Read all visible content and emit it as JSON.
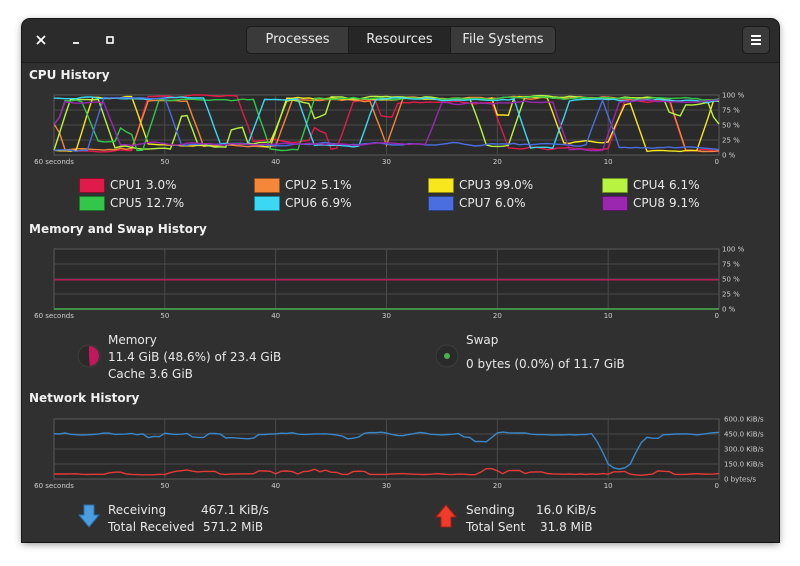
{
  "window": {
    "controls": {
      "close": "×",
      "minimize": "–",
      "maximize": "□"
    },
    "tabs": [
      {
        "label": "Processes",
        "active": false
      },
      {
        "label": "Resources",
        "active": true
      },
      {
        "label": "File Systems",
        "active": false
      }
    ]
  },
  "cpu": {
    "title": "CPU History",
    "y_ticks": [
      "100 %",
      "75 %",
      "50 %",
      "25 %",
      "0 %"
    ],
    "x_ticks": [
      "60 seconds",
      "50",
      "40",
      "30",
      "20",
      "10",
      "0"
    ],
    "cores": [
      {
        "label": "CPU1",
        "value": "3.0%",
        "color": "#e01b4b"
      },
      {
        "label": "CPU2",
        "value": "5.1%",
        "color": "#f5873a"
      },
      {
        "label": "CPU3",
        "value": "99.0%",
        "color": "#f8e71c"
      },
      {
        "label": "CPU4",
        "value": "6.1%",
        "color": "#b8f342"
      },
      {
        "label": "CPU5",
        "value": "12.7%",
        "color": "#33c749"
      },
      {
        "label": "CPU6",
        "value": "6.9%",
        "color": "#3cd7f5"
      },
      {
        "label": "CPU7",
        "value": "6.0%",
        "color": "#4a6edf"
      },
      {
        "label": "CPU8",
        "value": "9.1%",
        "color": "#9b27b0"
      }
    ]
  },
  "memory": {
    "title": "Memory and Swap History",
    "y_ticks": [
      "100 %",
      "75 %",
      "50 %",
      "25 %",
      "0 %"
    ],
    "x_ticks": [
      "60 seconds",
      "50",
      "40",
      "30",
      "20",
      "10",
      "0"
    ],
    "memory_label": "Memory",
    "memory_usage": "11.4 GiB (48.6%) of 23.4 GiB",
    "memory_percent": 48.6,
    "cache": "Cache 3.6 GiB",
    "memory_color": "#c2185b",
    "swap_label": "Swap",
    "swap_usage": "0 bytes (0.0%) of 11.7 GiB",
    "swap_percent": 0.0,
    "swap_color": "#4caf50"
  },
  "network": {
    "title": "Network History",
    "y_ticks": [
      "600.0 KiB/s",
      "450.0 KiB/s",
      "300.0 KiB/s",
      "150.0 KiB/s",
      "0 bytes/s"
    ],
    "x_ticks": [
      "60 seconds",
      "50",
      "40",
      "30",
      "20",
      "10",
      "0"
    ],
    "receiving_label": "Receiving",
    "receiving_value": "467.1 KiB/s",
    "total_received_label": "Total Received",
    "total_received_value": "571.2 MiB",
    "sending_label": "Sending",
    "sending_value": "16.0 KiB/s",
    "total_sent_label": "Total Sent",
    "total_sent_value": "31.8 MiB",
    "receiving_color": "#3a86c8",
    "sending_color": "#e53935"
  }
}
